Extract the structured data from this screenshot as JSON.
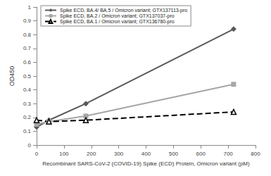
{
  "chart_data": {
    "type": "line",
    "x_label": "Recombinant SARS-CoV-2 (COVID-19) Spike (ECD) Protein, Omicron variant (pM)",
    "y_label": "OD450",
    "x": [
      0,
      45,
      180,
      720
    ],
    "series": [
      {
        "name": "Spike ECD, BA.4/ BA.5 / Omicron variant; GTX137113-pro",
        "color": "#595959",
        "marker": "diamond",
        "line_style": "solid",
        "values": [
          0.13,
          0.18,
          0.3,
          0.84
        ]
      },
      {
        "name": "Spike ECD, BA.2 / Omicron variant; GTX137037-pro",
        "color": "#a6a6a6",
        "marker": "square",
        "line_style": "solid",
        "values": [
          0.15,
          0.17,
          0.21,
          0.44
        ]
      },
      {
        "name": "Spike ECD, BA.1 / Omicron variant; GTX136780-pro",
        "color": "#000000",
        "marker": "open_triangle",
        "line_style": "dashed",
        "values": [
          0.18,
          0.17,
          0.18,
          0.24
        ]
      }
    ],
    "xlim": [
      0,
      800
    ],
    "xticks": [
      0,
      100,
      200,
      300,
      400,
      500,
      600,
      700,
      800
    ],
    "ylim": [
      0,
      1
    ],
    "yticks": [
      0,
      0.1,
      0.2,
      0.3,
      0.4,
      0.5,
      0.6,
      0.7,
      0.8,
      0.9,
      1
    ],
    "grid": false,
    "legend": "top-left"
  }
}
